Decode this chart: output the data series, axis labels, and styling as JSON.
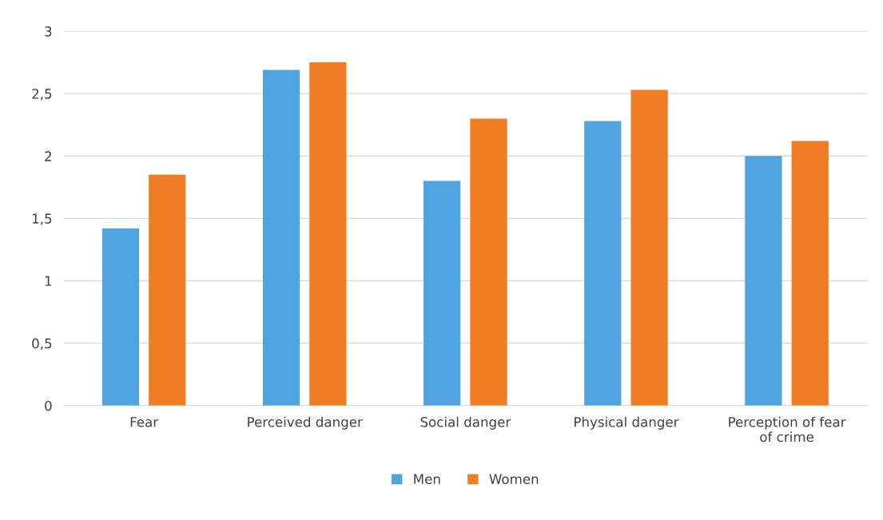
{
  "chart_data": {
    "type": "bar",
    "categories": [
      "Fear",
      "Perceived danger",
      "Social danger",
      "Physical danger",
      "Perception of fear of crime"
    ],
    "series": [
      {
        "name": "Men",
        "color": "#4fa3df",
        "values": [
          1.42,
          2.69,
          1.8,
          2.28,
          2.0
        ]
      },
      {
        "name": "Women",
        "color": "#f07c23",
        "values": [
          1.85,
          2.75,
          2.3,
          2.53,
          2.12
        ]
      }
    ],
    "ylim": [
      0,
      3
    ],
    "yticks": [
      0,
      {
        "value": 0.5,
        "label": "0,5"
      },
      1,
      {
        "value": 1.5,
        "label": "1,5"
      },
      2,
      {
        "value": 2.5,
        "label": "2,5"
      },
      3
    ],
    "grid": "y",
    "legend": "bottom"
  }
}
